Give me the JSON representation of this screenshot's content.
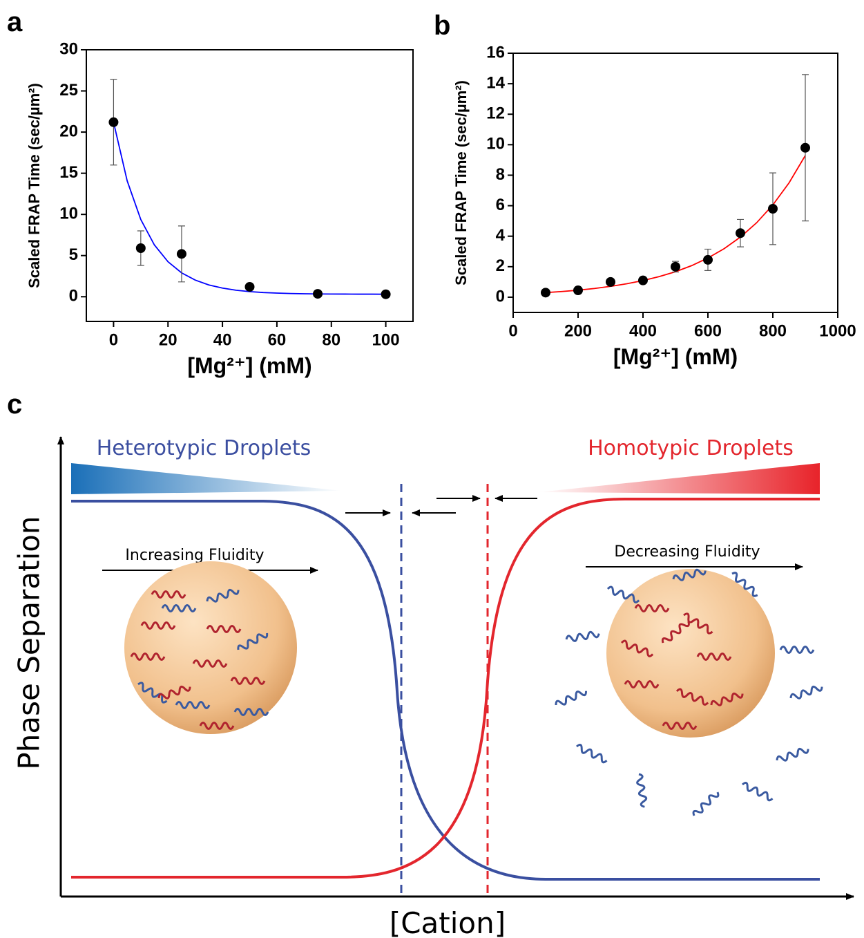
{
  "chart_data": [
    {
      "type": "scatter",
      "panel": "a",
      "x_label": "[Mg²⁺] (mM)",
      "y_label": "Scaled FRAP Time (sec/µm²)",
      "x": [
        0,
        10,
        25,
        50,
        75,
        100
      ],
      "values": [
        21.2,
        5.9,
        5.2,
        1.2,
        0.35,
        0.3
      ],
      "errors": [
        5.2,
        2.1,
        3.4,
        0.2,
        0.1,
        0.1
      ],
      "color": "#000000",
      "fit_x": [
        0,
        5,
        10,
        15,
        20,
        25,
        30,
        35,
        40,
        45,
        50,
        55,
        60,
        65,
        70,
        75,
        80,
        85,
        90,
        95,
        100
      ],
      "fit_values": [
        21.2,
        14.08,
        9.38,
        6.29,
        4.25,
        2.9,
        2.02,
        1.43,
        1.05,
        0.79,
        0.62,
        0.51,
        0.44,
        0.39,
        0.36,
        0.34,
        0.33,
        0.32,
        0.31,
        0.31,
        0.3
      ],
      "fit_color": "#0000ff",
      "xlim": [
        -10,
        110
      ],
      "xticks": [
        0,
        20,
        40,
        60,
        80,
        100
      ],
      "ylim": [
        -3,
        30
      ],
      "yticks": [
        0,
        5,
        10,
        15,
        20,
        25,
        30
      ]
    },
    {
      "type": "scatter",
      "panel": "b",
      "x_label": "[Mg²⁺] (mM)",
      "y_label": "Scaled FRAP Time (sec/µm²)",
      "x": [
        100,
        200,
        300,
        400,
        500,
        600,
        700,
        800,
        900
      ],
      "values": [
        0.3,
        0.45,
        1.0,
        1.1,
        2.0,
        2.45,
        4.2,
        5.8,
        9.8
      ],
      "errors": [
        0.1,
        0.1,
        0.1,
        0.1,
        0.35,
        0.7,
        0.9,
        2.35,
        4.8
      ],
      "color": "#000000",
      "fit_x": [
        100,
        150,
        200,
        250,
        300,
        350,
        400,
        450,
        500,
        550,
        600,
        650,
        700,
        750,
        800,
        850,
        900
      ],
      "fit_values": [
        0.3,
        0.37,
        0.46,
        0.57,
        0.71,
        0.88,
        1.09,
        1.35,
        1.67,
        2.07,
        2.57,
        3.18,
        3.94,
        4.88,
        6.05,
        7.5,
        9.29
      ],
      "fit_color": "#ff0000",
      "xlim": [
        0,
        1000
      ],
      "xticks": [
        0,
        200,
        400,
        600,
        800,
        1000
      ],
      "ylim": [
        -1,
        16
      ],
      "yticks": [
        0,
        2,
        4,
        6,
        8,
        10,
        12,
        14,
        16
      ]
    }
  ],
  "diagram": {
    "panel": "c",
    "y_label": "Phase Separation",
    "x_label": "[Cation]",
    "left_title": "Heterotypic Droplets",
    "right_title": "Homotypic Droplets",
    "left_arrow": "Increasing Fluidity",
    "right_arrow": "Decreasing Fluidity"
  }
}
